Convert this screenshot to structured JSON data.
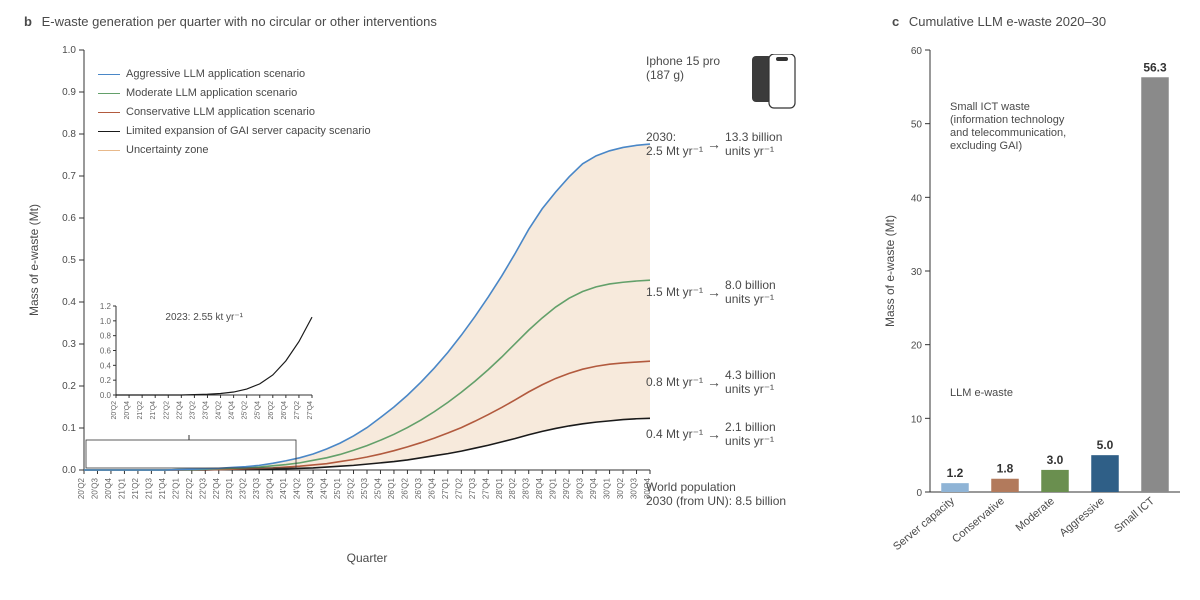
{
  "panelB": {
    "letter": "b",
    "title": "E-waste generation per quarter with no circular or other interventions",
    "ylabel": "Mass of e-waste (Mt)",
    "xlabel": "Quarter",
    "ylim": [
      0,
      1.0
    ],
    "ytick_step": 0.1,
    "xticks": [
      "20'Q2",
      "20'Q3",
      "20'Q4",
      "21'Q1",
      "21'Q2",
      "21'Q3",
      "21'Q4",
      "22'Q1",
      "22'Q2",
      "22'Q3",
      "22'Q4",
      "23'Q1",
      "23'Q2",
      "23'Q3",
      "23'Q4",
      "24'Q1",
      "24'Q2",
      "24'Q3",
      "24'Q4",
      "25'Q1",
      "25'Q2",
      "25'Q3",
      "25'Q4",
      "26'Q1",
      "26'Q2",
      "26'Q3",
      "26'Q4",
      "27'Q1",
      "27'Q2",
      "27'Q3",
      "27'Q4",
      "28'Q1",
      "28'Q2",
      "28'Q3",
      "28'Q4",
      "29'Q1",
      "29'Q2",
      "29'Q3",
      "29'Q4",
      "30'Q1",
      "30'Q2",
      "30'Q3",
      "30'Q4"
    ],
    "legend": [
      {
        "label": "Aggressive LLM application scenario",
        "color": "#4a87c7"
      },
      {
        "label": "Moderate LLM application scenario",
        "color": "#63a06a"
      },
      {
        "label": "Conservative LLM application scenario",
        "color": "#b25a3e"
      },
      {
        "label": "Limited expansion of GAI server capacity scenario",
        "color": "#1a1a1a"
      },
      {
        "label": "Uncertainty zone",
        "color": "#e8b98b"
      }
    ],
    "series": {
      "aggressive": [
        0,
        0,
        0,
        0,
        0,
        0,
        0,
        0.001,
        0.002,
        0.003,
        0.004,
        0.006,
        0.008,
        0.011,
        0.016,
        0.022,
        0.029,
        0.038,
        0.05,
        0.064,
        0.081,
        0.101,
        0.125,
        0.15,
        0.178,
        0.209,
        0.243,
        0.28,
        0.321,
        0.365,
        0.412,
        0.462,
        0.516,
        0.573,
        0.622,
        0.662,
        0.698,
        0.729,
        0.748,
        0.76,
        0.768,
        0.773,
        0.776
      ],
      "moderate": [
        0,
        0,
        0,
        0,
        0,
        0,
        0,
        0.001,
        0.001,
        0.002,
        0.003,
        0.004,
        0.005,
        0.007,
        0.01,
        0.013,
        0.017,
        0.023,
        0.029,
        0.037,
        0.047,
        0.058,
        0.071,
        0.085,
        0.101,
        0.119,
        0.139,
        0.161,
        0.185,
        0.211,
        0.239,
        0.269,
        0.301,
        0.333,
        0.362,
        0.388,
        0.409,
        0.425,
        0.436,
        0.443,
        0.447,
        0.45,
        0.452
      ],
      "conservative": [
        0,
        0,
        0,
        0,
        0,
        0,
        0,
        0,
        0.001,
        0.001,
        0.001,
        0.002,
        0.003,
        0.004,
        0.005,
        0.007,
        0.009,
        0.012,
        0.015,
        0.02,
        0.025,
        0.031,
        0.038,
        0.046,
        0.055,
        0.065,
        0.076,
        0.088,
        0.101,
        0.116,
        0.132,
        0.149,
        0.167,
        0.186,
        0.203,
        0.218,
        0.23,
        0.24,
        0.247,
        0.252,
        0.255,
        0.257,
        0.259
      ],
      "limited": [
        0,
        0,
        0,
        0,
        0,
        0,
        0,
        0,
        0,
        0,
        0.001,
        0.001,
        0.001,
        0.002,
        0.002,
        0.003,
        0.004,
        0.005,
        0.007,
        0.009,
        0.011,
        0.014,
        0.017,
        0.02,
        0.024,
        0.029,
        0.034,
        0.039,
        0.045,
        0.052,
        0.059,
        0.067,
        0.075,
        0.084,
        0.092,
        0.099,
        0.105,
        0.11,
        0.114,
        0.117,
        0.12,
        0.122,
        0.123
      ]
    },
    "uncertainty_color": "#e8c39a",
    "callouts": {
      "iphone_label": "Iphone 15 pro",
      "iphone_mass": "(187 g)",
      "r1": {
        "mt": "2030:\n2.5 Mt yr⁻¹",
        "units": "13.3 billion\nunits yr⁻¹"
      },
      "r2": {
        "mt": "1.5 Mt yr⁻¹",
        "units": "8.0 billion\nunits yr⁻¹"
      },
      "r3": {
        "mt": "0.8 Mt yr⁻¹",
        "units": "4.3 billion\nunits yr⁻¹"
      },
      "r4": {
        "mt": "0.4 Mt yr⁻¹",
        "units": "2.1 billion\nunits yr⁻¹"
      },
      "world_pop": "World population\n2030 (from UN): 8.5 billion"
    },
    "inset": {
      "label": "2023: 2.55 kt  yr⁻¹",
      "ylim": [
        0,
        1.2
      ],
      "ytick_step": 0.2,
      "xticks": [
        "20'Q2",
        "20'Q4",
        "21'Q2",
        "21'Q4",
        "22'Q2",
        "22'Q4",
        "23'Q2",
        "23'Q4",
        "24'Q2",
        "24'Q4",
        "25'Q2",
        "25'Q4",
        "26'Q2",
        "26'Q4",
        "27'Q2",
        "27'Q4"
      ],
      "color": "#1a1a1a",
      "values": [
        0,
        0,
        0,
        0,
        0,
        0,
        0.005,
        0.01,
        0.02,
        0.04,
        0.08,
        0.15,
        0.27,
        0.46,
        0.72,
        1.05
      ]
    }
  },
  "panelC": {
    "letter": "c",
    "title": "Cumulative LLM e-waste 2020–30",
    "ylabel": "Mass of e-waste (Mt)",
    "ylim": [
      0,
      60
    ],
    "ytick_step": 10,
    "note_small_ict": "Small ICT waste\n(information technology\nand telecommunication,\nexcluding GAI)",
    "note_llm": "LLM e-waste",
    "categories": [
      "Server capacity",
      "Conservative",
      "Moderate",
      "Aggressive",
      "Small ICT"
    ],
    "values": [
      1.2,
      1.8,
      3.0,
      5.0,
      56.3
    ],
    "bar_colors": [
      "#8fb4d6",
      "#b27a5c",
      "#6a8f4f",
      "#2f5f87",
      "#8a8a8a"
    ],
    "background_color": "#ffffff",
    "bar_width": 0.55
  }
}
